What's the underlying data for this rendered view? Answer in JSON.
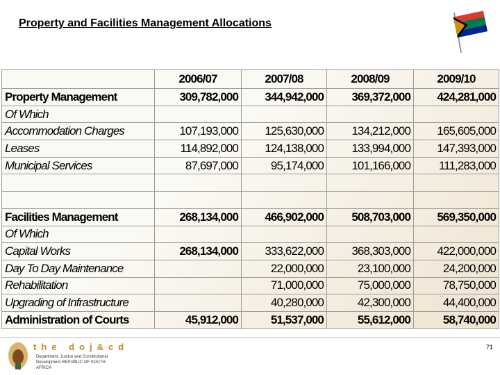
{
  "title": "Property and Facilities Management Allocations",
  "table": {
    "header": [
      "2006/07",
      "2007/08",
      "2008/09",
      "2009/10"
    ],
    "rows": [
      [
        "Property Management",
        "309,782,000",
        "344,942,000",
        "369,372,000",
        "424,281,000"
      ],
      [
        "Of Which",
        null,
        null,
        null,
        null
      ],
      [
        "Accommodation Charges",
        "107,193,000",
        "125,630,000",
        "134,212,000",
        "165,605,000"
      ],
      [
        "Leases",
        "114,892,000",
        "124,138,000",
        "133,994,000",
        "147,393,000"
      ],
      [
        "Municipal Services",
        "87,697,000",
        "95,174,000",
        "101,166,000",
        "111,283,000"
      ],
      [
        null,
        null,
        null,
        null,
        null
      ],
      [
        null,
        null,
        null,
        null,
        null
      ],
      [
        "Facilities Management",
        "268,134,000",
        "466,902,000",
        "508,703,000",
        "569,350,000"
      ],
      [
        "Of Which",
        null,
        null,
        null,
        null
      ],
      [
        "Capital Works",
        "268,134,000",
        "333,622,000",
        "368,303,000",
        "422,000,000"
      ],
      [
        "Day To Day Maintenance",
        null,
        "22,000,000",
        "23,100,000",
        "24,200,000"
      ],
      [
        "Rehabilitation",
        null,
        "71,000,000",
        "75,000,000",
        "78,750,000"
      ],
      [
        "Upgrading of Infrastructure",
        null,
        "40,280,000",
        "42,300,000",
        "44,400,000"
      ],
      [
        "Administration of Courts",
        "45,912,000",
        "51,537,000",
        "55,612,000",
        "58,740,000"
      ]
    ]
  },
  "footer": {
    "logo": "the doj&cd",
    "department": "Department: Justice and Constitutional Development REPUBLIC OF SOUTH AFRICA",
    "page": "71"
  }
}
